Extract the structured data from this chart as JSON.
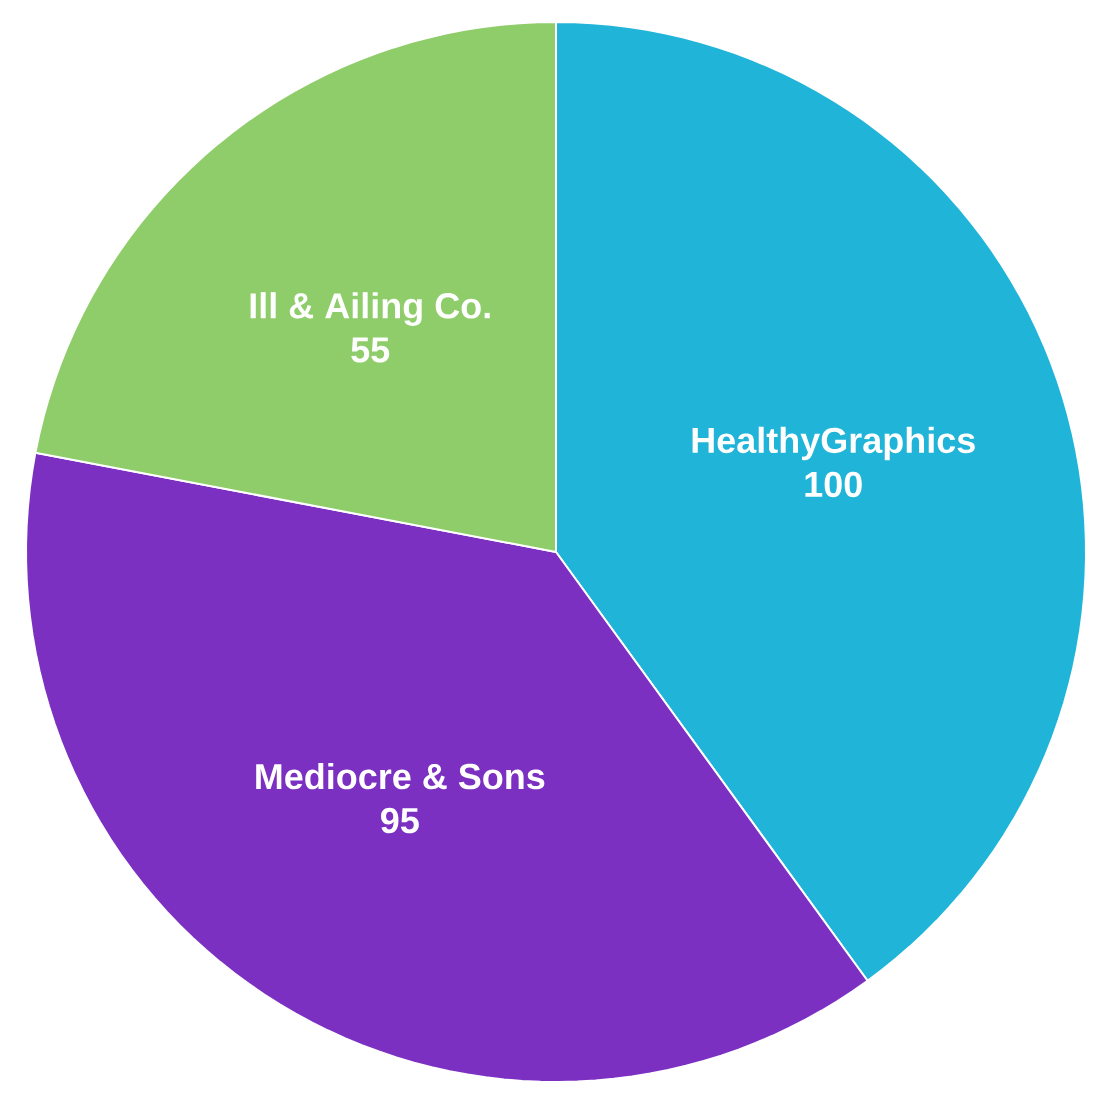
{
  "chart_data": {
    "type": "pie",
    "categories": [
      "HealthyGraphics",
      "Mediocre & Sons",
      "Ill & Ailing Co."
    ],
    "values": [
      100,
      95,
      55
    ],
    "colors": [
      "#1fb4d8",
      "#7b30c2",
      "#8fcd6a"
    ],
    "data_labels": true
  }
}
